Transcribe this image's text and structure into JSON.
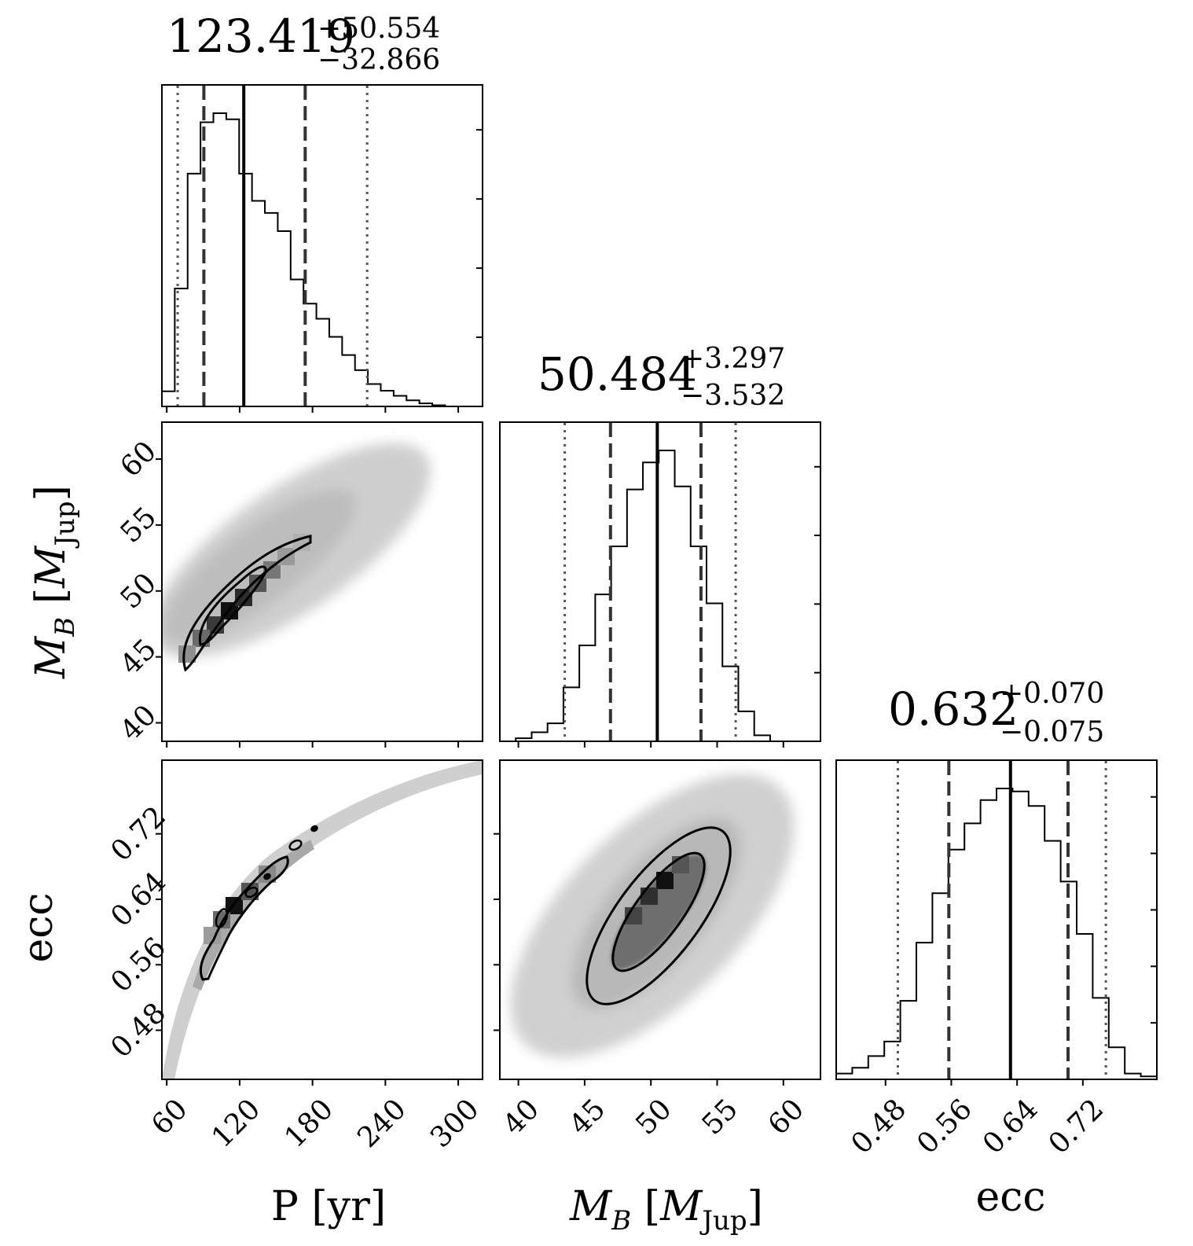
{
  "chart_data": {
    "type": "corner",
    "parameters": [
      {
        "key": "P",
        "label": "P [yr]",
        "range": [
          56,
          320
        ],
        "ticks": [
          60,
          120,
          180,
          240,
          300
        ],
        "median": 123.419,
        "err_plus": 50.554,
        "err_minus": 32.866,
        "median_text": "123.419",
        "plus_text": "+50.554",
        "minus_text": "−32.866",
        "q1sigma": [
          90.553,
          173.973
        ],
        "q2sigma": [
          69,
          225
        ],
        "hist": {
          "bins": [
            56,
            66.6,
            77.2,
            87.8,
            98.4,
            109,
            119.6,
            130.2,
            140.8,
            151.4,
            162,
            172.6,
            183.2,
            193.8,
            204.4,
            215,
            225.6,
            236.2,
            246.8,
            257.4,
            268,
            278.6,
            289.2
          ],
          "counts": [
            0.05,
            0.39,
            0.77,
            0.94,
            0.97,
            0.95,
            0.77,
            0.68,
            0.64,
            0.58,
            0.42,
            0.34,
            0.29,
            0.23,
            0.17,
            0.12,
            0.074,
            0.052,
            0.035,
            0.02,
            0.01,
            0.004
          ]
        }
      },
      {
        "key": "M_B",
        "label_main": "M",
        "label_sub": "B",
        "label_bracket_open": " [",
        "label_unit": "M",
        "label_unit_sub": "Jup",
        "label_bracket_close": "]",
        "range": [
          38.6,
          62.8
        ],
        "ticks": [
          40,
          45,
          50,
          55,
          60
        ],
        "median": 50.484,
        "err_plus": 3.297,
        "err_minus": 3.532,
        "median_text": "50.484",
        "plus_text": "+3.297",
        "minus_text": "−3.532",
        "q1sigma": [
          46.952,
          53.781
        ],
        "q2sigma": [
          43.5,
          56.4
        ],
        "hist": {
          "bins": [
            39.8,
            41,
            42.2,
            43.4,
            44.6,
            45.8,
            47,
            48.2,
            49.4,
            50.6,
            51.8,
            53,
            54.2,
            55.4,
            56.6,
            57.8,
            59
          ],
          "counts": [
            0.01,
            0.03,
            0.06,
            0.18,
            0.32,
            0.49,
            0.65,
            0.84,
            0.93,
            0.97,
            0.85,
            0.65,
            0.46,
            0.25,
            0.1,
            0.02
          ]
        }
      },
      {
        "key": "ecc",
        "label": "ecc",
        "range": [
          0.42,
          0.81
        ],
        "ticks": [
          0.48,
          0.56,
          0.64,
          0.72
        ],
        "tick_labels": [
          "0.48",
          "0.56",
          "0.64",
          "0.72"
        ],
        "median": 0.632,
        "err_plus": 0.07,
        "err_minus": 0.075,
        "median_text": "0.632",
        "plus_text": "+0.070",
        "minus_text": "−0.075",
        "q1sigma": [
          0.557,
          0.702
        ],
        "q2sigma": [
          0.495,
          0.748
        ],
        "hist": {
          "bins": [
            0.42,
            0.4395,
            0.459,
            0.4785,
            0.498,
            0.5175,
            0.537,
            0.5565,
            0.576,
            0.5955,
            0.615,
            0.6345,
            0.654,
            0.6735,
            0.693,
            0.7125,
            0.732,
            0.7515,
            0.771,
            0.7905,
            0.81
          ],
          "counts": [
            0.02,
            0.04,
            0.08,
            0.13,
            0.27,
            0.47,
            0.64,
            0.79,
            0.88,
            0.96,
            1.0,
            0.99,
            0.94,
            0.82,
            0.68,
            0.5,
            0.28,
            0.11,
            0.02,
            0.01
          ]
        }
      }
    ],
    "pairs": [
      {
        "x": "P",
        "y": "M_B"
      },
      {
        "x": "P",
        "y": "ecc"
      },
      {
        "x": "M_B",
        "y": "ecc"
      }
    ],
    "contour_levels": [
      "1-sigma",
      "2-sigma"
    ]
  }
}
